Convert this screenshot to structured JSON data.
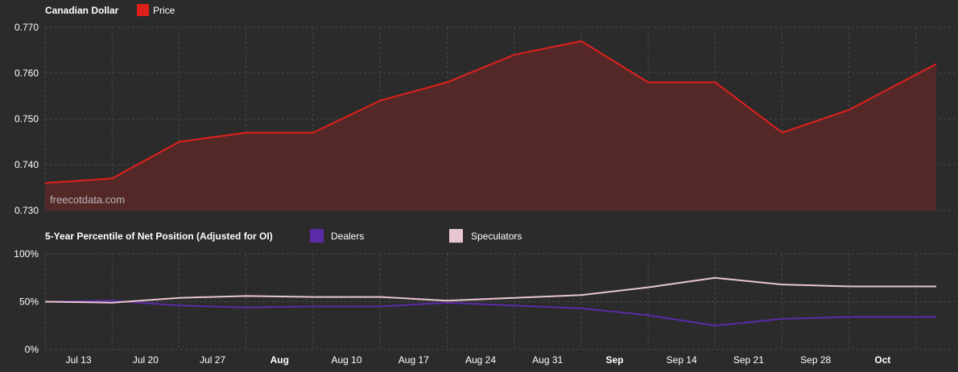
{
  "colors": {
    "background": "#2b2b2b",
    "price": "#e0201b",
    "price_fill": "#552828",
    "dealers": "#5b2aa6",
    "speculators": "#e8c6d0",
    "grid": "#4a4a4a"
  },
  "watermark": "freecotdata.com",
  "x_ticks": [
    {
      "label": "Jul 13",
      "x": 0.5,
      "bold": false
    },
    {
      "label": "Jul 20",
      "x": 1.5,
      "bold": false
    },
    {
      "label": "Jul 27",
      "x": 2.5,
      "bold": false
    },
    {
      "label": "Aug",
      "x": 3.5,
      "bold": true
    },
    {
      "label": "Aug 10",
      "x": 4.5,
      "bold": false
    },
    {
      "label": "Aug 17",
      "x": 5.5,
      "bold": false
    },
    {
      "label": "Aug 24",
      "x": 6.5,
      "bold": false
    },
    {
      "label": "Aug 31",
      "x": 7.5,
      "bold": false
    },
    {
      "label": "Sep",
      "x": 8.5,
      "bold": true
    },
    {
      "label": "Sep 14",
      "x": 9.5,
      "bold": false
    },
    {
      "label": "Sep 21",
      "x": 10.5,
      "bold": false
    },
    {
      "label": "Sep 28",
      "x": 11.5,
      "bold": false
    },
    {
      "label": "Oct",
      "x": 12.5,
      "bold": true
    }
  ],
  "chart_data": [
    {
      "type": "area",
      "title": "Canadian Dollar",
      "xlim": [
        0,
        13.3
      ],
      "ylim": [
        0.73,
        0.77
      ],
      "yticks": [
        "0.730",
        "0.740",
        "0.750",
        "0.760",
        "0.770"
      ],
      "grid": true,
      "legend_position": "top-left",
      "series": [
        {
          "name": "Price",
          "x": [
            0,
            1,
            2,
            3,
            4,
            5,
            6,
            7,
            8,
            9,
            10,
            11,
            12,
            13.3
          ],
          "values": [
            0.736,
            0.737,
            0.745,
            0.747,
            0.747,
            0.754,
            0.758,
            0.764,
            0.767,
            0.758,
            0.758,
            0.747,
            0.752,
            0.762
          ]
        }
      ]
    },
    {
      "type": "line",
      "title": "5-Year Percentile of Net Position (Adjusted for OI)",
      "xlim": [
        0,
        13.3
      ],
      "ylim": [
        0,
        100
      ],
      "yticks": [
        "0%",
        "50%",
        "100%"
      ],
      "grid": true,
      "legend_position": "top-left",
      "series": [
        {
          "name": "Dealers",
          "x": [
            0,
            1,
            2,
            3,
            4,
            5,
            6,
            7,
            8,
            9,
            10,
            11,
            12,
            13.3
          ],
          "values": [
            50,
            51,
            46,
            44,
            45,
            45,
            49,
            46,
            43,
            36,
            25,
            32,
            34,
            34
          ]
        },
        {
          "name": "Speculators",
          "x": [
            0,
            1,
            2,
            3,
            4,
            5,
            6,
            7,
            8,
            9,
            10,
            11,
            12,
            13.3
          ],
          "values": [
            50,
            49,
            54,
            56,
            55,
            55,
            51,
            54,
            57,
            65,
            75,
            68,
            66,
            66
          ]
        }
      ]
    }
  ]
}
